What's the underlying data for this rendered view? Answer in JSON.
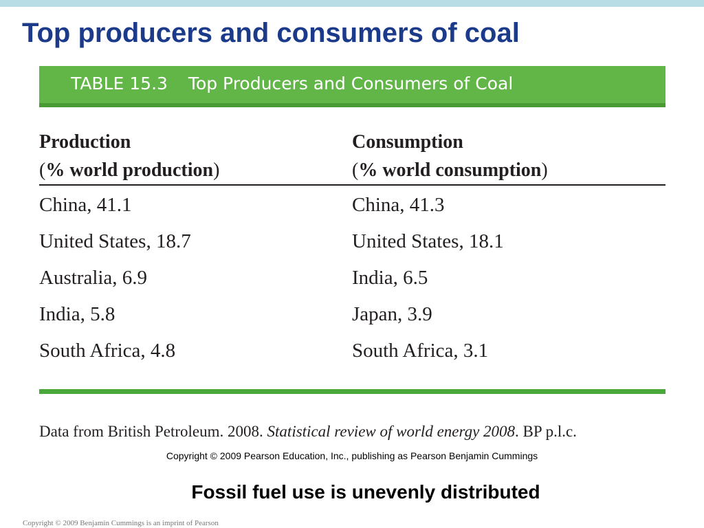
{
  "slide": {
    "title": "Top producers and consumers of coal",
    "subtitle": "Fossil fuel use is unevenly distributed",
    "footer": "Copyright © 2009 Benjamin Cummings is an imprint of Pearson"
  },
  "table": {
    "label": "TABLE 15.3",
    "caption": "Top Producers and Consumers of Coal",
    "production": {
      "header": "Production",
      "subheader_open": "(",
      "subheader_bold": "% world production",
      "subheader_close": ")",
      "rows": [
        "China, 41.1",
        "United States, 18.7",
        "Australia, 6.9",
        "India, 5.8",
        "South Africa, 4.8"
      ]
    },
    "consumption": {
      "header": "Consumption",
      "subheader_open": "(",
      "subheader_bold": "% world consumption",
      "subheader_close": ")",
      "rows": [
        "China, 41.3",
        "United States, 18.1",
        "India, 6.5",
        "Japan, 3.9",
        "South Africa, 3.1"
      ]
    },
    "source_prefix": "Data from British Petroleum. 2008. ",
    "source_title": "Statistical review of world energy 2008",
    "source_suffix": ". BP p.l.c.",
    "copyright": "Copyright © 2009 Pearson Education, Inc., publishing as Pearson Benjamin Cummings"
  }
}
